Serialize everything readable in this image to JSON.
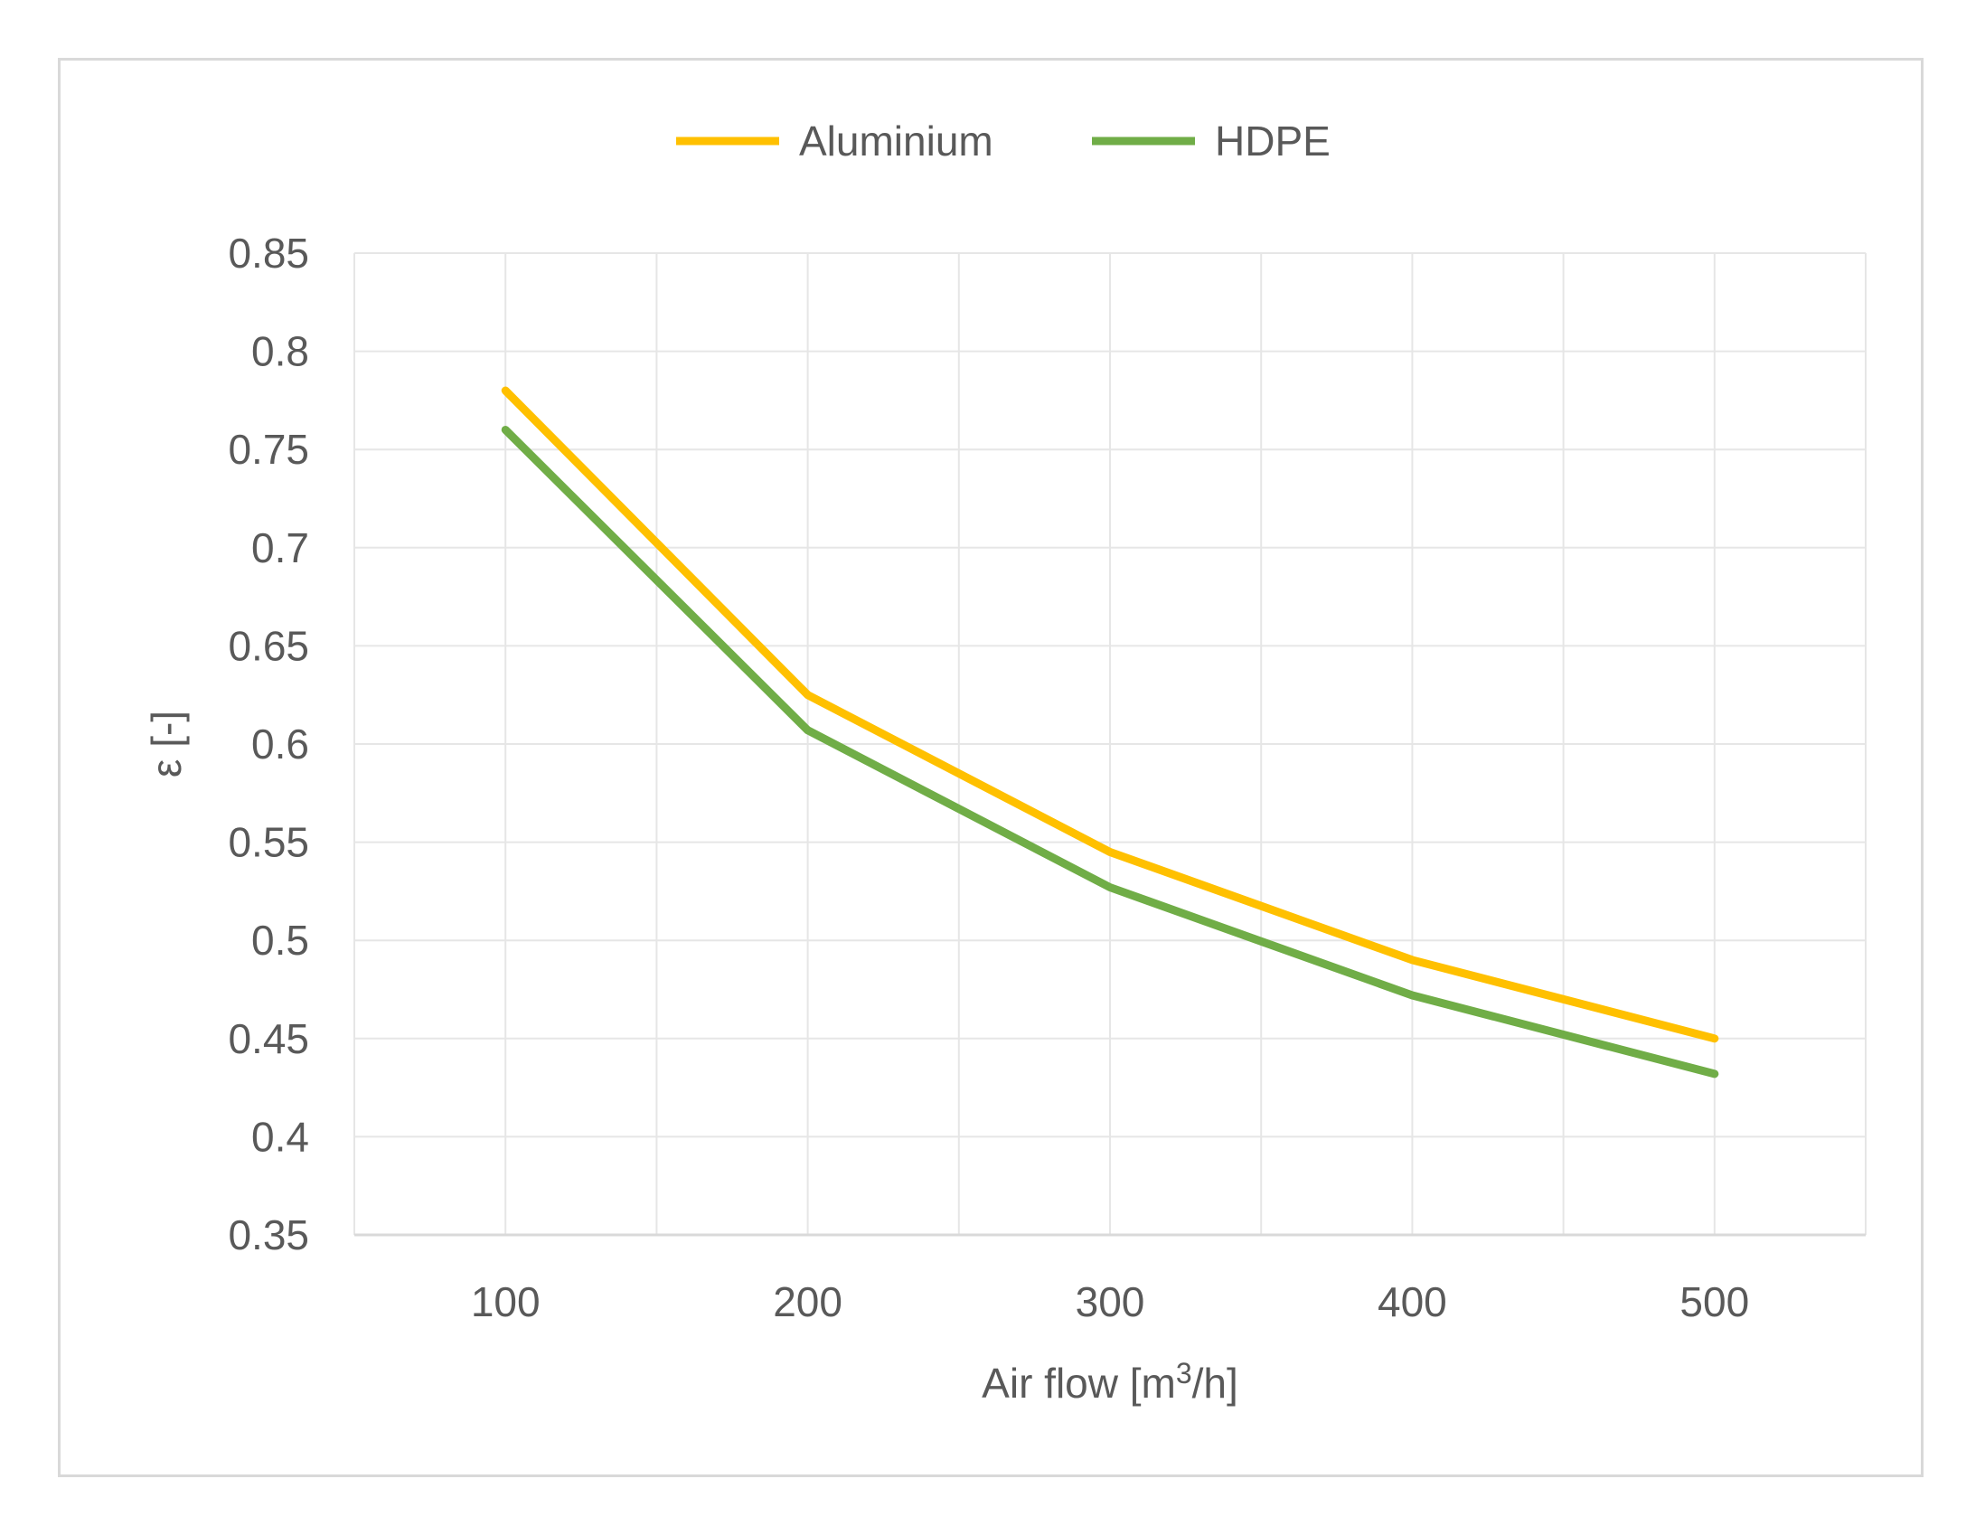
{
  "chart_data": {
    "type": "line",
    "title": "",
    "x": [
      100,
      200,
      300,
      400,
      500
    ],
    "x_tick_labels": [
      "100",
      "200",
      "300",
      "400",
      "500"
    ],
    "xlabel": "Air flow [m",
    "xlabel_superscript": "3",
    "xlabel_suffix": "/h]",
    "ylabel": "ε [-]",
    "ylim": [
      0.35,
      0.85
    ],
    "y_ticks": [
      0.35,
      0.4,
      0.45,
      0.5,
      0.55,
      0.6,
      0.65,
      0.7,
      0.75,
      0.8,
      0.85
    ],
    "y_tick_labels": [
      "0.35",
      "0.4",
      "0.45",
      "0.5",
      "0.55",
      "0.6",
      "0.65",
      "0.7",
      "0.75",
      "0.8",
      "0.85"
    ],
    "grid": true,
    "legend_position": "top-center",
    "series": [
      {
        "name": "Aluminium",
        "color": "#FFC000",
        "values": [
          0.78,
          0.625,
          0.545,
          0.49,
          0.45
        ]
      },
      {
        "name": "HDPE",
        "color": "#70AD47",
        "values": [
          0.76,
          0.607,
          0.527,
          0.472,
          0.432
        ]
      }
    ]
  }
}
